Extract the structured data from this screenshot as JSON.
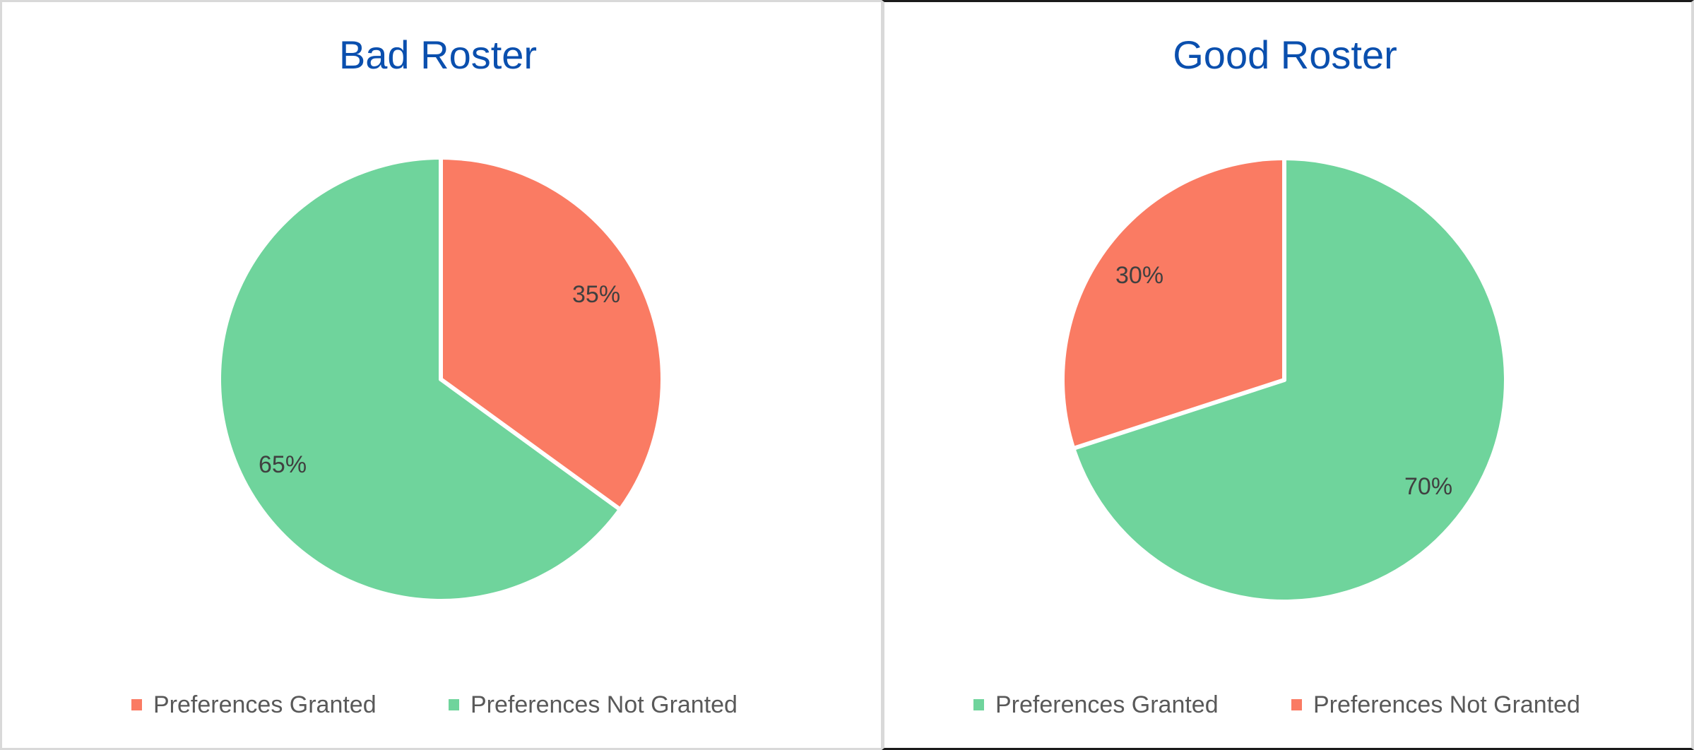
{
  "colors": {
    "granted_orange": "#fa7b63",
    "not_granted_green": "#6fd49c",
    "title_blue": "#0a4fae",
    "label_dark": "#404040",
    "legend_gray": "#595959",
    "separator": "#ffffff"
  },
  "charts": [
    {
      "title": "Bad Roster",
      "legend": [
        {
          "label": "Preferences Granted",
          "color": "#fa7b63"
        },
        {
          "label": "Preferences Not Granted",
          "color": "#6fd49c"
        }
      ],
      "slices": [
        {
          "label": "Preferences Granted",
          "value": 35,
          "display": "35%",
          "color": "#fa7b63"
        },
        {
          "label": "Preferences Not Granted",
          "value": 65,
          "display": "65%",
          "color": "#6fd49c"
        }
      ]
    },
    {
      "title": "Good Roster",
      "legend": [
        {
          "label": "Preferences Granted",
          "color": "#6fd49c"
        },
        {
          "label": "Preferences Not Granted",
          "color": "#fa7b63"
        }
      ],
      "slices": [
        {
          "label": "Preferences Granted",
          "value": 70,
          "display": "70%",
          "color": "#6fd49c"
        },
        {
          "label": "Preferences Not Granted",
          "value": 30,
          "display": "30%",
          "color": "#fa7b63"
        }
      ]
    }
  ],
  "chart_data": [
    {
      "type": "pie",
      "title": "Bad Roster",
      "categories": [
        "Preferences Granted",
        "Preferences Not Granted"
      ],
      "values": [
        35,
        65
      ],
      "data_labels": [
        "35%",
        "65%"
      ],
      "colors": [
        "#fa7b63",
        "#6fd49c"
      ],
      "legend_position": "bottom",
      "start_angle": "12 o'clock, clockwise"
    },
    {
      "type": "pie",
      "title": "Good Roster",
      "categories": [
        "Preferences Granted",
        "Preferences Not Granted"
      ],
      "values": [
        70,
        30
      ],
      "data_labels": [
        "70%",
        "30%"
      ],
      "colors": [
        "#6fd49c",
        "#fa7b63"
      ],
      "legend_position": "bottom",
      "start_angle": "12 o'clock, clockwise"
    }
  ]
}
